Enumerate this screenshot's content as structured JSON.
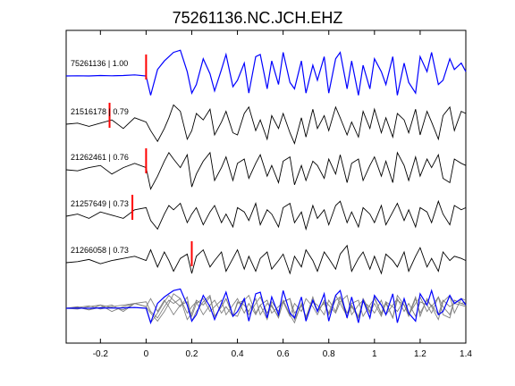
{
  "chart_data": {
    "type": "line",
    "title": "75261136.NC.JCH.EHZ",
    "xlabel": "",
    "ylabel": "",
    "xlim": [
      -0.35,
      1.4
    ],
    "xticks": [
      -0.2,
      0,
      0.2,
      0.4,
      0.6,
      0.8,
      1,
      1.2,
      1.4
    ],
    "xtick_labels": [
      "-0.2",
      "0",
      "0.2",
      "0.4",
      "0.6",
      "0.8",
      "1",
      "1.2",
      "1.4"
    ],
    "grid": false,
    "colors": {
      "reference": "#0000ff",
      "trace": "#000000",
      "stack": "#808080",
      "pick": "#ff0000"
    },
    "series": [
      {
        "label": "75261136 | 1.00",
        "pick": 0.0,
        "color": "#0000ff",
        "x": [
          -0.35,
          -0.3,
          -0.25,
          -0.2,
          -0.15,
          -0.1,
          -0.05,
          0,
          0.02,
          0.05,
          0.08,
          0.1,
          0.12,
          0.15,
          0.18,
          0.2,
          0.22,
          0.25,
          0.28,
          0.3,
          0.33,
          0.35,
          0.38,
          0.4,
          0.43,
          0.45,
          0.48,
          0.5,
          0.53,
          0.55,
          0.58,
          0.6,
          0.63,
          0.65,
          0.68,
          0.7,
          0.73,
          0.75,
          0.78,
          0.8,
          0.83,
          0.85,
          0.88,
          0.9,
          0.93,
          0.95,
          0.98,
          1,
          1.03,
          1.05,
          1.08,
          1.1,
          1.13,
          1.15,
          1.18,
          1.2,
          1.23,
          1.25,
          1.28,
          1.3,
          1.33,
          1.35,
          1.38,
          1.4
        ],
        "y": [
          0,
          0.01,
          0,
          0.02,
          0.01,
          0.02,
          0.05,
          0,
          -0.9,
          0.3,
          0.7,
          0.9,
          1.1,
          1.2,
          0.2,
          -0.8,
          -0.4,
          0.8,
          0.1,
          -0.7,
          0.3,
          1.0,
          -0.5,
          -0.2,
          0.6,
          -0.8,
          0.9,
          1.0,
          -0.6,
          0.7,
          -0.4,
          1.1,
          -0.3,
          -0.6,
          0.7,
          -0.8,
          0.5,
          -0.2,
          0.9,
          -0.8,
          0.8,
          1.1,
          -0.6,
          0.7,
          -0.9,
          0.5,
          -0.6,
          0.8,
          0.2,
          -0.4,
          0.9,
          -0.9,
          0.6,
          -0.3,
          -0.8,
          0.9,
          0.2,
          1.1,
          -0.4,
          -0.2,
          0.8,
          0.3,
          0.6,
          0.2
        ]
      },
      {
        "label": "21516178 | 0.79",
        "pick": -0.16,
        "color": "#000000",
        "x": [
          -0.35,
          -0.3,
          -0.25,
          -0.2,
          -0.15,
          -0.1,
          -0.05,
          0,
          0.02,
          0.05,
          0.08,
          0.1,
          0.12,
          0.15,
          0.18,
          0.2,
          0.22,
          0.25,
          0.28,
          0.3,
          0.33,
          0.35,
          0.38,
          0.4,
          0.43,
          0.45,
          0.48,
          0.5,
          0.53,
          0.55,
          0.58,
          0.6,
          0.63,
          0.65,
          0.68,
          0.7,
          0.73,
          0.75,
          0.78,
          0.8,
          0.83,
          0.85,
          0.88,
          0.9,
          0.93,
          0.95,
          0.98,
          1,
          1.03,
          1.05,
          1.08,
          1.1,
          1.13,
          1.15,
          1.18,
          1.2,
          1.23,
          1.25,
          1.28,
          1.3,
          1.33,
          1.35,
          1.38,
          1.4
        ],
        "y": [
          0,
          0.05,
          -0.1,
          0.05,
          0.2,
          -0.2,
          0.3,
          0.1,
          -0.3,
          -0.8,
          -0.2,
          0.3,
          0.9,
          0.6,
          -0.7,
          -0.3,
          0.5,
          0.2,
          0.7,
          -0.5,
          0.1,
          0.6,
          -0.4,
          -0.5,
          0.5,
          0.8,
          -0.3,
          0.2,
          -0.7,
          0.4,
          -0.2,
          0.5,
          -0.4,
          -0.9,
          0.3,
          -0.6,
          0.7,
          -0.2,
          0.4,
          -0.3,
          0.8,
          0.3,
          -0.5,
          0.1,
          -0.6,
          0.6,
          -0.2,
          0.7,
          -0.4,
          0.3,
          -0.6,
          0.5,
          0.2,
          -0.4,
          0.7,
          -0.5,
          0.6,
          0.1,
          -0.7,
          0.4,
          0.8,
          -0.3,
          0.6,
          0.5
        ]
      },
      {
        "label": "21262461 | 0.76",
        "pick": 0.0,
        "color": "#000000",
        "x": [
          -0.35,
          -0.3,
          -0.25,
          -0.2,
          -0.15,
          -0.1,
          -0.05,
          0,
          0.02,
          0.05,
          0.08,
          0.1,
          0.12,
          0.15,
          0.18,
          0.2,
          0.22,
          0.25,
          0.28,
          0.3,
          0.33,
          0.35,
          0.38,
          0.4,
          0.43,
          0.45,
          0.48,
          0.5,
          0.53,
          0.55,
          0.58,
          0.6,
          0.63,
          0.65,
          0.68,
          0.7,
          0.73,
          0.75,
          0.78,
          0.8,
          0.83,
          0.85,
          0.88,
          0.9,
          0.93,
          0.95,
          0.98,
          1,
          1.03,
          1.05,
          1.08,
          1.1,
          1.13,
          1.15,
          1.18,
          1.2,
          1.23,
          1.25,
          1.28,
          1.3,
          1.33,
          1.35,
          1.38,
          1.4
        ],
        "y": [
          0,
          -0.05,
          0.1,
          0.2,
          -0.2,
          0.1,
          0.3,
          0.1,
          -0.9,
          -0.3,
          0.4,
          0.8,
          0.5,
          0.1,
          0.7,
          -0.8,
          -0.2,
          0.4,
          0.8,
          -0.5,
          0.1,
          0.6,
          -0.5,
          0.3,
          0.5,
          -0.4,
          0.3,
          0.7,
          -0.3,
          0.2,
          -0.6,
          0.4,
          0.6,
          -0.7,
          0.2,
          -0.5,
          0.4,
          0.2,
          -0.4,
          0.5,
          -0.2,
          0.7,
          -0.6,
          0.3,
          0.5,
          -0.5,
          0.2,
          0.6,
          -0.3,
          0.4,
          -0.6,
          0.8,
          0.2,
          -0.5,
          0.6,
          -0.3,
          0.5,
          0.1,
          0.7,
          -0.4,
          -0.6,
          0.5,
          0.3,
          0.2
        ]
      },
      {
        "label": "21257649 | 0.73",
        "pick": -0.06,
        "color": "#000000",
        "x": [
          -0.35,
          -0.3,
          -0.25,
          -0.2,
          -0.15,
          -0.1,
          -0.05,
          0,
          0.02,
          0.05,
          0.08,
          0.1,
          0.12,
          0.15,
          0.18,
          0.2,
          0.22,
          0.25,
          0.28,
          0.3,
          0.33,
          0.35,
          0.38,
          0.4,
          0.43,
          0.45,
          0.48,
          0.5,
          0.53,
          0.55,
          0.58,
          0.6,
          0.63,
          0.65,
          0.68,
          0.7,
          0.73,
          0.75,
          0.78,
          0.8,
          0.83,
          0.85,
          0.88,
          0.9,
          0.93,
          0.95,
          0.98,
          1,
          1.03,
          1.05,
          1.08,
          1.1,
          1.13,
          1.15,
          1.18,
          1.2,
          1.23,
          1.25,
          1.28,
          1.3,
          1.33,
          1.35,
          1.38,
          1.4
        ],
        "y": [
          0,
          0.1,
          -0.1,
          0.2,
          0.05,
          -0.1,
          0.3,
          0.4,
          -0.2,
          -0.6,
          0.1,
          0.5,
          0.3,
          0.6,
          -0.3,
          0.1,
          0.4,
          -0.4,
          0.2,
          0.5,
          -0.3,
          0.1,
          -0.5,
          0.4,
          0.2,
          -0.2,
          0.6,
          -0.4,
          0.3,
          0.1,
          -0.5,
          0.4,
          0.6,
          -0.3,
          0.2,
          -0.6,
          0.5,
          -0.1,
          0.3,
          -0.4,
          0.5,
          0.7,
          -0.3,
          0.2,
          -0.5,
          0.4,
          0.1,
          -0.3,
          0.5,
          -0.4,
          0.2,
          0.6,
          -0.2,
          0.3,
          -0.5,
          0.4,
          0.2,
          -0.3,
          0.7,
          0.1,
          -0.4,
          0.5,
          0.3,
          0.4
        ]
      },
      {
        "label": "21266058 | 0.73",
        "pick": 0.2,
        "color": "#000000",
        "x": [
          -0.35,
          -0.3,
          -0.25,
          -0.2,
          -0.15,
          -0.1,
          -0.05,
          0,
          0.02,
          0.05,
          0.08,
          0.1,
          0.12,
          0.15,
          0.18,
          0.2,
          0.22,
          0.25,
          0.28,
          0.3,
          0.33,
          0.35,
          0.38,
          0.4,
          0.43,
          0.45,
          0.48,
          0.5,
          0.53,
          0.55,
          0.58,
          0.6,
          0.63,
          0.65,
          0.68,
          0.7,
          0.73,
          0.75,
          0.78,
          0.8,
          0.83,
          0.85,
          0.88,
          0.9,
          0.93,
          0.95,
          0.98,
          1,
          1.03,
          1.05,
          1.08,
          1.1,
          1.13,
          1.15,
          1.18,
          1.2,
          1.23,
          1.25,
          1.28,
          1.3,
          1.33,
          1.35,
          1.38,
          1.4
        ],
        "y": [
          0,
          0.05,
          0.15,
          -0.05,
          0.1,
          0.2,
          0.3,
          0.1,
          0.6,
          -0.2,
          0.5,
          0.1,
          -0.4,
          0.2,
          0.4,
          -0.5,
          0.3,
          0.6,
          -0.2,
          0.1,
          0.5,
          -0.4,
          0.2,
          0.6,
          -0.3,
          0.3,
          -0.4,
          0.2,
          0.5,
          -0.3,
          0.1,
          0.4,
          -0.5,
          0.3,
          -0.2,
          0.6,
          0.1,
          -0.4,
          0.5,
          0.2,
          -0.3,
          0.4,
          0.8,
          -0.4,
          0.2,
          0.5,
          -0.3,
          0.3,
          -0.5,
          0.4,
          0.1,
          -0.2,
          0.5,
          -0.4,
          0.3,
          0.7,
          -0.2,
          0.2,
          -0.4,
          0.5,
          0.1,
          0.3,
          0.2,
          0.1
        ]
      }
    ],
    "stack_series_order": [
      0,
      1,
      2,
      3,
      4
    ]
  }
}
